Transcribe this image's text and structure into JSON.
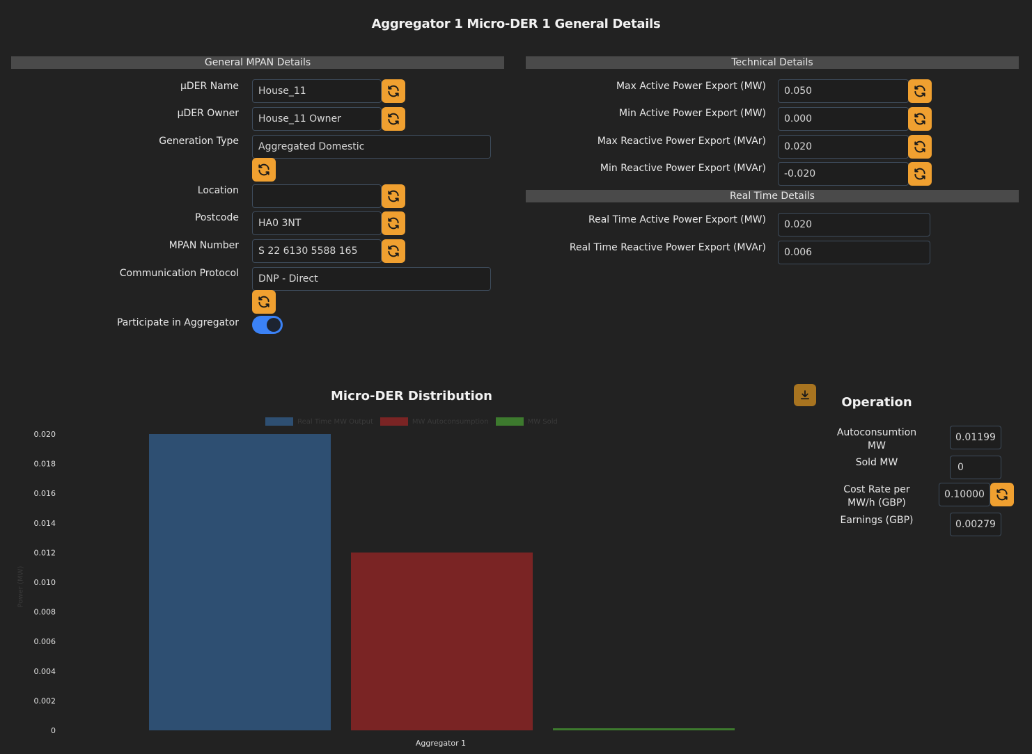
{
  "page_title": "Aggregator 1 Micro-DER 1 General Details",
  "general": {
    "header": "General MPAN Details",
    "uder_name_label": "μDER Name",
    "uder_name_value": "House_11",
    "uder_owner_label": "μDER Owner",
    "uder_owner_value": "House_11 Owner",
    "generation_type_label": "Generation Type",
    "generation_type_value": "Aggregated Domestic",
    "location_label": "Location",
    "location_value": "",
    "postcode_label": "Postcode",
    "postcode_value": "HA0 3NT",
    "mpan_label": "MPAN Number",
    "mpan_value": "S 22 6130 5588 165",
    "protocol_label": "Communication Protocol",
    "protocol_value": "DNP - Direct",
    "participate_label": "Participate in Aggregator",
    "participate_on": true
  },
  "technical": {
    "header": "Technical Details",
    "max_active_label": "Max Active Power Export (MW)",
    "max_active_value": "0.050",
    "min_active_label": "Min Active Power Export (MW)",
    "min_active_value": "0.000",
    "max_reactive_label": "Max Reactive Power Export (MVAr)",
    "max_reactive_value": "0.020",
    "min_reactive_label": "Min Reactive Power Export (MVAr)",
    "min_reactive_value": "-0.020"
  },
  "realtime": {
    "header": "Real Time Details",
    "rt_active_label": "Real Time Active Power Export (MW)",
    "rt_active_value": "0.020",
    "rt_reactive_label": "Real Time Reactive Power Export (MVAr)",
    "rt_reactive_value": "0.006"
  },
  "operation": {
    "title": "Operation",
    "autoconsumption_label_1": "Autoconsumtion",
    "autoconsumption_label_2": "MW",
    "autoconsumption_value": "0.01199",
    "sold_label": "Sold MW",
    "sold_value": "0",
    "cost_rate_label_1": "Cost Rate per",
    "cost_rate_label_2": "MW/h (GBP)",
    "cost_rate_value": "0.10000",
    "earnings_label": "Earnings (GBP)",
    "earnings_value": "0.00279"
  },
  "icons": {
    "refresh": "refresh-icon",
    "download": "download-icon"
  },
  "colors": {
    "accent": "#f0a030",
    "toggle_on": "#3b82f6",
    "series_output": "#2e4f72",
    "series_autoconsumption": "#7a2424",
    "series_sold": "#3d7a2e"
  },
  "chart_data": {
    "type": "bar",
    "title": "Micro-DER Distribution",
    "xlabel": "",
    "ylabel": "Power (MW)",
    "ylim": [
      0,
      0.02
    ],
    "yticks": [
      "0.020",
      "0.018",
      "0.016",
      "0.014",
      "0.012",
      "0.010",
      "0.008",
      "0.006",
      "0.004",
      "0.002",
      "0"
    ],
    "categories": [
      "Aggregator 1"
    ],
    "legend_position": "top",
    "grid": false,
    "series": [
      {
        "name": "Real Time MW Output",
        "values": [
          0.02
        ],
        "color": "#2e4f72"
      },
      {
        "name": "MW Autoconsumption",
        "values": [
          0.012
        ],
        "color": "#7a2424"
      },
      {
        "name": "MW Sold",
        "values": [
          0.0001
        ],
        "color": "#3d7a2e"
      }
    ]
  }
}
